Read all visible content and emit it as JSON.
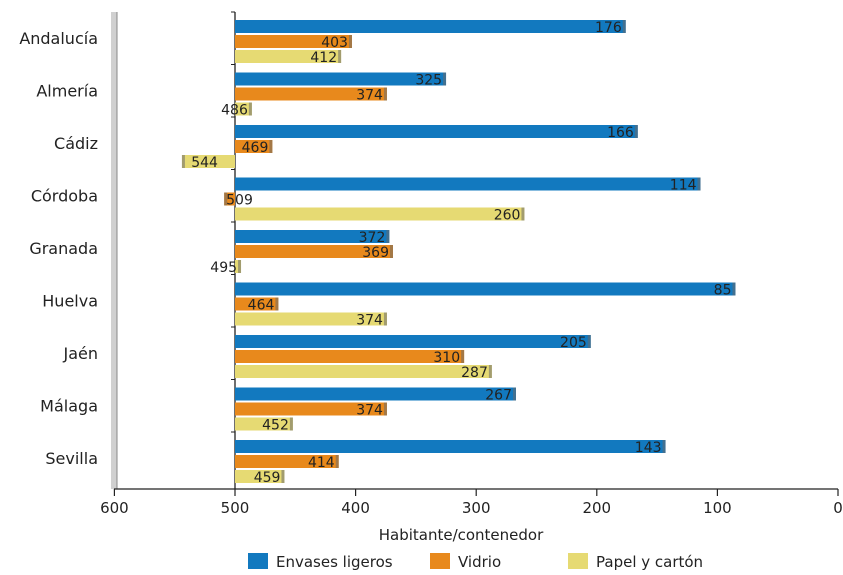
{
  "chart_data": {
    "type": "bar",
    "orientation": "horizontal",
    "xlabel": "Habitante/contenedor",
    "xlim": [
      600,
      0
    ],
    "xticks": [
      600,
      500,
      400,
      300,
      200,
      100,
      0
    ],
    "categories": [
      "Andalucía",
      "Almería",
      "Cádiz",
      "Córdoba",
      "Granada",
      "Huelva",
      "Jaén",
      "Málaga",
      "Sevilla"
    ],
    "series": [
      {
        "name": "Envases ligeros",
        "color": "#1279bf",
        "values": [
          176,
          325,
          166,
          114,
          372,
          85,
          205,
          267,
          143
        ]
      },
      {
        "name": "Vidrio",
        "color": "#e8891c",
        "values": [
          403,
          374,
          469,
          509,
          369,
          464,
          310,
          374,
          414
        ]
      },
      {
        "name": "Papel y cartón",
        "color": "#e6da73",
        "values": [
          412,
          486,
          544,
          260,
          495,
          374,
          287,
          452,
          459
        ]
      }
    ],
    "legend_position": "bottom",
    "grid": false
  }
}
